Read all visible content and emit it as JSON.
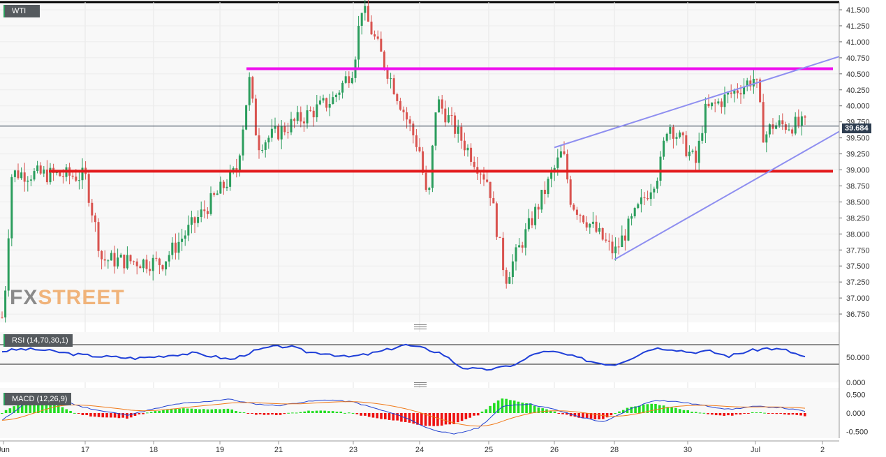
{
  "symbol": "WTI",
  "current_price": "39.684",
  "watermark": {
    "part1": "FX",
    "part2": "STREET"
  },
  "colors": {
    "up": "#2a9d5c",
    "down": "#d9534f",
    "resistance": "#ee10ee",
    "support": "#e31a1c",
    "channel": "#8e8ef0",
    "rsi_line": "#1f3fd8",
    "macd_line": "#2040d0",
    "signal_line": "#f07a1a",
    "hist_pos": "#22dd22",
    "hist_neg": "#ee1111"
  },
  "chart_data": [
    {
      "type": "candlestick",
      "title": "WTI",
      "interval_per_day": 24,
      "x_labels": [
        "Jun",
        "17",
        "18",
        "19",
        "21",
        "23",
        "24",
        "25",
        "26",
        "28",
        "30",
        "Jul",
        "2"
      ],
      "y_ticks": [
        "41.500",
        "41.250",
        "41.000",
        "40.750",
        "40.500",
        "40.250",
        "40.000",
        "39.750",
        "39.500",
        "39.250",
        "39.000",
        "38.750",
        "38.500",
        "38.250",
        "38.000",
        "37.750",
        "37.500",
        "37.250",
        "37.000",
        "36.750"
      ],
      "ylim": [
        36.62,
        41.62
      ],
      "key_points": [
        {
          "day": "Jun 16",
          "price": 36.7
        },
        {
          "day": "Jun 16",
          "price": 38.95
        },
        {
          "day": "Jun 17",
          "price": 37.6
        },
        {
          "day": "Jun 17",
          "price": 38.9
        },
        {
          "day": "Jun 18",
          "price": 37.55
        },
        {
          "day": "Jun 19",
          "price": 39.0
        },
        {
          "day": "Jun 20",
          "price": 40.4
        },
        {
          "day": "Jun 20",
          "price": 39.4
        },
        {
          "day": "Jun 22",
          "price": 40.1
        },
        {
          "day": "Jun 23",
          "price": 40.6
        },
        {
          "day": "Jun 23",
          "price": 41.55
        },
        {
          "day": "Jun 24",
          "price": 40.1
        },
        {
          "day": "Jun 24",
          "price": 39.3
        },
        {
          "day": "Jun 24",
          "price": 38.4
        },
        {
          "day": "Jun 25",
          "price": 37.3
        },
        {
          "day": "Jun 25",
          "price": 38.8
        },
        {
          "day": "Jun 26",
          "price": 39.3
        },
        {
          "day": "Jun 26",
          "price": 38.5
        },
        {
          "day": "Jun 28",
          "price": 37.7
        },
        {
          "day": "Jun 29",
          "price": 39.0
        },
        {
          "day": "Jun 29",
          "price": 39.75
        },
        {
          "day": "Jun 30",
          "price": 39.3
        },
        {
          "day": "Jun 30",
          "price": 39.1
        },
        {
          "day": "Jun 30",
          "price": 39.9
        },
        {
          "day": "Jul 1",
          "price": 40.45
        },
        {
          "day": "Jul 1",
          "price": 39.5
        },
        {
          "day": "Jul 1",
          "price": 39.7
        }
      ],
      "horizontal_levels": [
        {
          "price": 40.58,
          "color": "resistance"
        },
        {
          "price": 38.98,
          "color": "support"
        },
        {
          "price": 39.684,
          "color": "current"
        }
      ],
      "trend_lines": [
        {
          "from": {
            "day": "Jun 26",
            "price": 39.35
          },
          "to": {
            "day": "Jul 2",
            "price": 40.77
          }
        },
        {
          "from": {
            "day": "Jun 28",
            "price": 37.6
          },
          "to": {
            "day": "Jul 2",
            "price": 39.6
          }
        }
      ]
    },
    {
      "type": "line",
      "title": "RSI (14,70,30,1)",
      "y_ticks": [
        "50.000",
        "0.000"
      ],
      "bands": [
        70,
        30
      ],
      "ylim": [
        0,
        100
      ],
      "values_approx": [
        62,
        66,
        65,
        60,
        55,
        52,
        50,
        48,
        51,
        55,
        58,
        52,
        45,
        60,
        70,
        72,
        60,
        58,
        50,
        55,
        63,
        75,
        68,
        58,
        30,
        25,
        28,
        38,
        60,
        60,
        50,
        40,
        35,
        50,
        68,
        67,
        60,
        62,
        52,
        62,
        68,
        64,
        50
      ]
    },
    {
      "type": "bar",
      "title": "MACD (12,26,9)",
      "y_ticks": [
        "0.500",
        "0.000",
        "-0.500"
      ],
      "ylim": [
        -0.68,
        0.68
      ],
      "macd_approx": [
        -0.2,
        0.3,
        0.48,
        0.2,
        0.05,
        -0.05,
        0.1,
        0.25,
        0.3,
        0.38,
        0.25,
        0.2,
        0.3,
        0.36,
        0.3,
        0.1,
        -0.1,
        -0.42,
        -0.58,
        -0.4,
        0.2,
        0.25,
        0.1,
        -0.1,
        -0.25,
        0.1,
        0.35,
        0.3,
        0.2,
        0.1,
        0.18,
        0.15,
        0.05
      ]
    }
  ]
}
